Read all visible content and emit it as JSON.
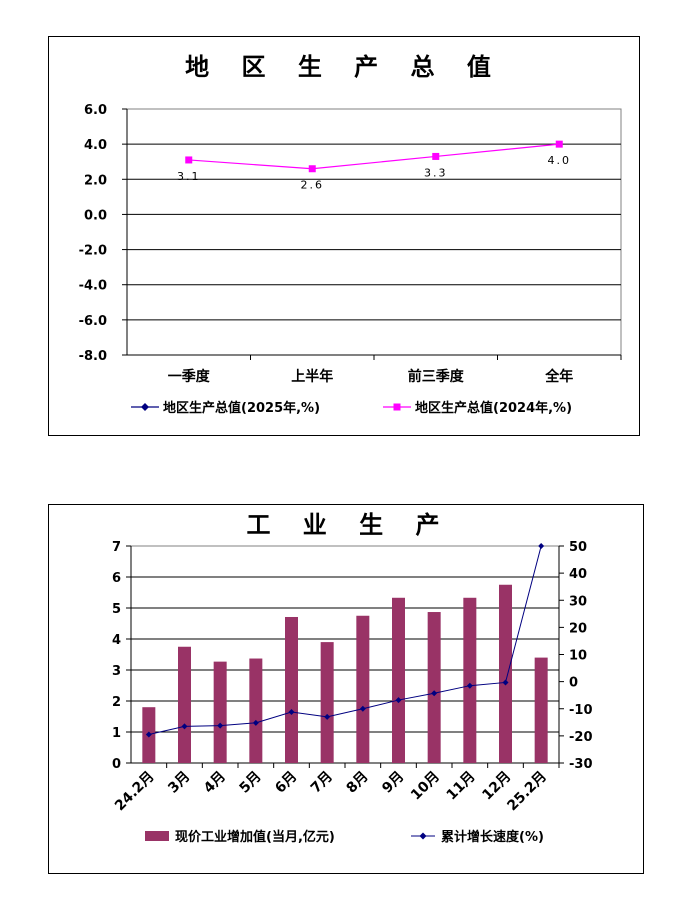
{
  "charts": [
    {
      "type": "line",
      "title": "地 区 生 产 总 值",
      "categories": [
        "一季度",
        "上半年",
        "前三季度",
        "全年"
      ],
      "y_ticks": [
        "6.0",
        "4.0",
        "2.0",
        "0.0",
        "-2.0",
        "-4.0",
        "-6.0",
        "-8.0"
      ],
      "ylim": [
        -8,
        6
      ],
      "series": [
        {
          "name": "地区生产总值(2025年,%)",
          "color": "#000080",
          "marker": "diamond",
          "values": []
        },
        {
          "name": "地区生产总值(2024年,%)",
          "color": "#FF00FF",
          "marker": "square",
          "values": [
            3.1,
            2.6,
            3.3,
            4.0
          ],
          "labels": [
            "3.1",
            "2.6",
            "3.3",
            "4.0"
          ]
        }
      ]
    },
    {
      "type": "bar+line",
      "title": "工 业 生 产",
      "categories": [
        "24.2月",
        "3月",
        "4月",
        "5月",
        "6月",
        "7月",
        "8月",
        "9月",
        "10月",
        "11月",
        "12月",
        "25.2月"
      ],
      "y_left_ticks": [
        "7",
        "6",
        "5",
        "4",
        "3",
        "2",
        "1",
        "0"
      ],
      "y_right_ticks": [
        "50",
        "40",
        "30",
        "20",
        "10",
        "0",
        "-10",
        "-20",
        "-30"
      ],
      "ylim_left": [
        0,
        7
      ],
      "ylim_right": [
        -30,
        50
      ],
      "series": [
        {
          "name": "现价工业增加值(当月,亿元)",
          "kind": "bar",
          "axis": "left",
          "color": "#993366",
          "values": [
            1.8,
            3.75,
            3.27,
            3.37,
            4.71,
            3.9,
            4.75,
            5.33,
            4.87,
            5.33,
            5.75,
            3.4
          ]
        },
        {
          "name": "累计增长速度(%)",
          "kind": "line",
          "axis": "right",
          "color": "#000080",
          "values": [
            -19.5,
            -16.5,
            -16.2,
            -15.2,
            -11.2,
            -13.0,
            -10.0,
            -6.8,
            -4.3,
            -1.5,
            -0.3,
            50.0
          ]
        }
      ]
    }
  ]
}
